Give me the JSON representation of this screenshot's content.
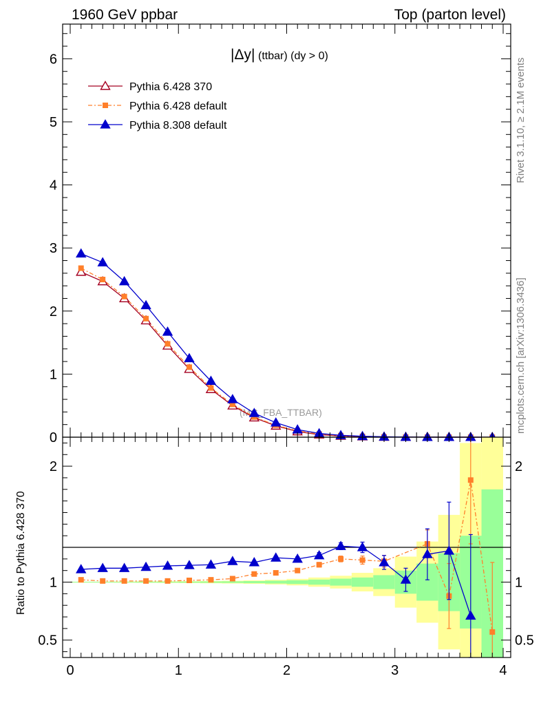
{
  "header": {
    "left": "1960 GeV ppbar",
    "right": "Top (parton level)"
  },
  "side_labels": {
    "rivet": "Rivet 3.1.10, ≥ 2.1M events",
    "mcplots": "mcplots.cern.ch [arXiv:1306.3436]"
  },
  "plot_title": {
    "main": "|Δy|",
    "sub": "(ttbar) (dy > 0)"
  },
  "watermark": "(MC_FBA_TTBAR)",
  "ratio_ylabel": "Ratio to Pythia 6.428 370",
  "chart_data": [
    {
      "type": "line",
      "panel": "main",
      "title": "|Δy| (ttbar) (dy > 0)",
      "xlim": [
        -0.07,
        4.07
      ],
      "ylim": [
        0,
        6.55
      ],
      "y_ticks": [
        0,
        1,
        2,
        3,
        4,
        5,
        6
      ],
      "legend_placement": "top-left",
      "x": [
        0.1,
        0.3,
        0.5,
        0.7,
        0.9,
        1.1,
        1.3,
        1.5,
        1.7,
        1.9,
        2.1,
        2.3,
        2.5,
        2.7,
        2.9,
        3.1,
        3.3,
        3.5,
        3.7,
        3.9
      ],
      "series": [
        {
          "name": "Pythia 6.428 370",
          "color": "#a50021",
          "marker": "open-triangle",
          "values": [
            2.62,
            2.47,
            2.2,
            1.85,
            1.45,
            1.08,
            0.76,
            0.5,
            0.31,
            0.18,
            0.09,
            0.04,
            0.02,
            0.01,
            0.004,
            0.002,
            0.001,
            0.0005,
            0.0002,
            0.0001
          ]
        },
        {
          "name": "Pythia 6.428 default",
          "color": "#ff7f2a",
          "marker": "square",
          "values": [
            2.68,
            2.5,
            2.23,
            1.88,
            1.48,
            1.11,
            0.78,
            0.52,
            0.32,
            0.19,
            0.1,
            0.05,
            0.025,
            0.012,
            0.005,
            0.002,
            0.001,
            0.0005,
            0.0003,
            0.0001
          ]
        },
        {
          "name": "Pythia 8.308 default",
          "color": "#0000cc",
          "marker": "triangle",
          "values": [
            2.91,
            2.77,
            2.47,
            2.09,
            1.67,
            1.25,
            0.89,
            0.6,
            0.38,
            0.23,
            0.12,
            0.06,
            0.03,
            0.015,
            0.006,
            0.002,
            0.001,
            0.0005,
            0.0002,
            0.0001
          ]
        }
      ]
    },
    {
      "type": "line",
      "panel": "ratio",
      "ylabel": "Ratio to Pythia 6.428 370",
      "xlim": [
        -0.07,
        4.07
      ],
      "ylim": [
        0.35,
        2.25
      ],
      "y_ticks": [
        0.5,
        1,
        2
      ],
      "x_ticks": [
        0,
        1,
        2,
        3,
        4
      ],
      "x": [
        0.1,
        0.3,
        0.5,
        0.7,
        0.9,
        1.1,
        1.3,
        1.5,
        1.7,
        1.9,
        2.1,
        2.3,
        2.5,
        2.7,
        2.9,
        3.1,
        3.3,
        3.5,
        3.7,
        3.9
      ],
      "reference_band": {
        "stat_halfwidth": [
          0.003,
          0.003,
          0.003,
          0.004,
          0.004,
          0.005,
          0.006,
          0.007,
          0.009,
          0.012,
          0.016,
          0.022,
          0.03,
          0.04,
          0.06,
          0.1,
          0.16,
          0.25,
          0.4,
          0.8
        ],
        "total_halfwidth": [
          0.004,
          0.004,
          0.005,
          0.006,
          0.007,
          0.008,
          0.01,
          0.012,
          0.015,
          0.02,
          0.028,
          0.04,
          0.055,
          0.08,
          0.12,
          0.22,
          0.35,
          0.58,
          1.2,
          1.5
        ],
        "stat_color": "#99ff99",
        "total_color": "#ffff99"
      },
      "series": [
        {
          "name": "Pythia 6.428 default",
          "color": "#ff7f2a",
          "marker": "square",
          "values": [
            1.02,
            1.01,
            1.01,
            1.01,
            1.01,
            1.015,
            1.02,
            1.03,
            1.07,
            1.08,
            1.1,
            1.15,
            1.2,
            1.19,
            1.18,
            null,
            1.33,
            0.88,
            1.88,
            0.57
          ],
          "errors": [
            0.002,
            0.002,
            0.002,
            0.003,
            0.003,
            0.004,
            0.005,
            0.006,
            0.008,
            0.01,
            0.014,
            0.02,
            0.025,
            0.035,
            0.05,
            0,
            0.12,
            0.28,
            0.55,
            0.6
          ]
        },
        {
          "name": "Pythia 8.308 default",
          "color": "#0000cc",
          "marker": "triangle",
          "values": [
            1.11,
            1.12,
            1.12,
            1.13,
            1.14,
            1.145,
            1.15,
            1.18,
            1.17,
            1.21,
            1.2,
            1.23,
            1.31,
            1.3,
            1.17,
            1.02,
            1.24,
            1.27,
            0.71,
            null
          ],
          "errors": [
            0.003,
            0.003,
            0.003,
            0.004,
            0.004,
            0.005,
            0.006,
            0.008,
            0.01,
            0.013,
            0.018,
            0.025,
            0.03,
            0.045,
            0.06,
            0.1,
            0.22,
            0.42,
            0.7,
            0
          ]
        }
      ]
    }
  ]
}
